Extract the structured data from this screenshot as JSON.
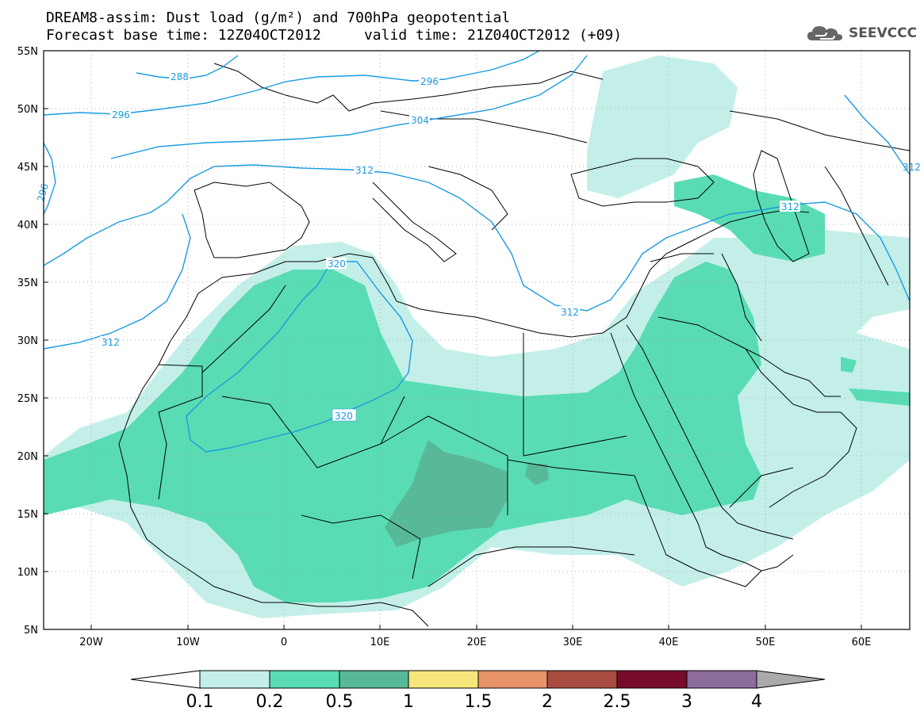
{
  "title": {
    "line1": "DREAM8-assim: Dust load (g/m²) and 700hPa geopotential",
    "line2": "Forecast base time: 12Z04OCT2012     valid time: 21Z04OCT2012 (+09)"
  },
  "logo": {
    "text": "SEEVCCC",
    "icon": "cloud-icon"
  },
  "map": {
    "lon_range": [
      -25,
      65
    ],
    "lat_range": [
      5,
      55
    ],
    "lon_ticks": [
      "20W",
      "10W",
      "0",
      "10E",
      "20E",
      "30E",
      "40E",
      "50E",
      "60E"
    ],
    "lat_ticks": [
      "55N",
      "50N",
      "45N",
      "40N",
      "35N",
      "30N",
      "25N",
      "20N",
      "15N",
      "10N",
      "5N"
    ],
    "contour_labels": [
      {
        "text": "288"
      },
      {
        "text": "296"
      },
      {
        "text": "296"
      },
      {
        "text": "304"
      },
      {
        "text": "312"
      },
      {
        "text": "312"
      },
      {
        "text": "312"
      },
      {
        "text": "312"
      },
      {
        "text": "320"
      },
      {
        "text": "320"
      },
      {
        "text": "296"
      },
      {
        "text": "312"
      }
    ],
    "colors": {
      "dust_01": "#c4efe9",
      "dust_02": "#59dcb4",
      "dust_05": "#58b998",
      "contour": "#1a9be0",
      "border": "#000000"
    }
  },
  "colorbar": {
    "labels": [
      "0.1",
      "0.2",
      "0.5",
      "1",
      "1.5",
      "2",
      "2.5",
      "3",
      "4"
    ],
    "colors": [
      "#c4efe9",
      "#59dcb4",
      "#58b998",
      "#f5e57a",
      "#e99369",
      "#a94c3f",
      "#780a2a",
      "#8c6c9c"
    ]
  }
}
